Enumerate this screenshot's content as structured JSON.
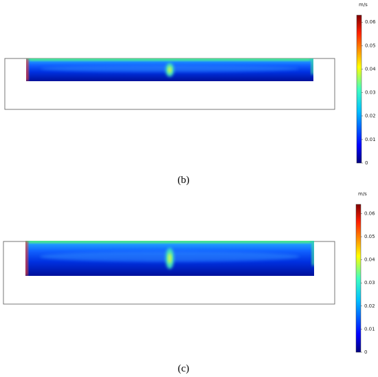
{
  "panels": [
    {
      "caption": "(b)",
      "colorbar": {
        "unit": "m/s",
        "range": [
          0,
          0.063
        ],
        "ticks": [
          0,
          0.01,
          0.02,
          0.03,
          0.04,
          0.05,
          0.06
        ]
      }
    },
    {
      "caption": "(c)",
      "colorbar": {
        "unit": "m/s",
        "range": [
          0,
          0.064
        ],
        "ticks": [
          0,
          0.01,
          0.02,
          0.03,
          0.04,
          0.05,
          0.06
        ]
      }
    }
  ]
}
